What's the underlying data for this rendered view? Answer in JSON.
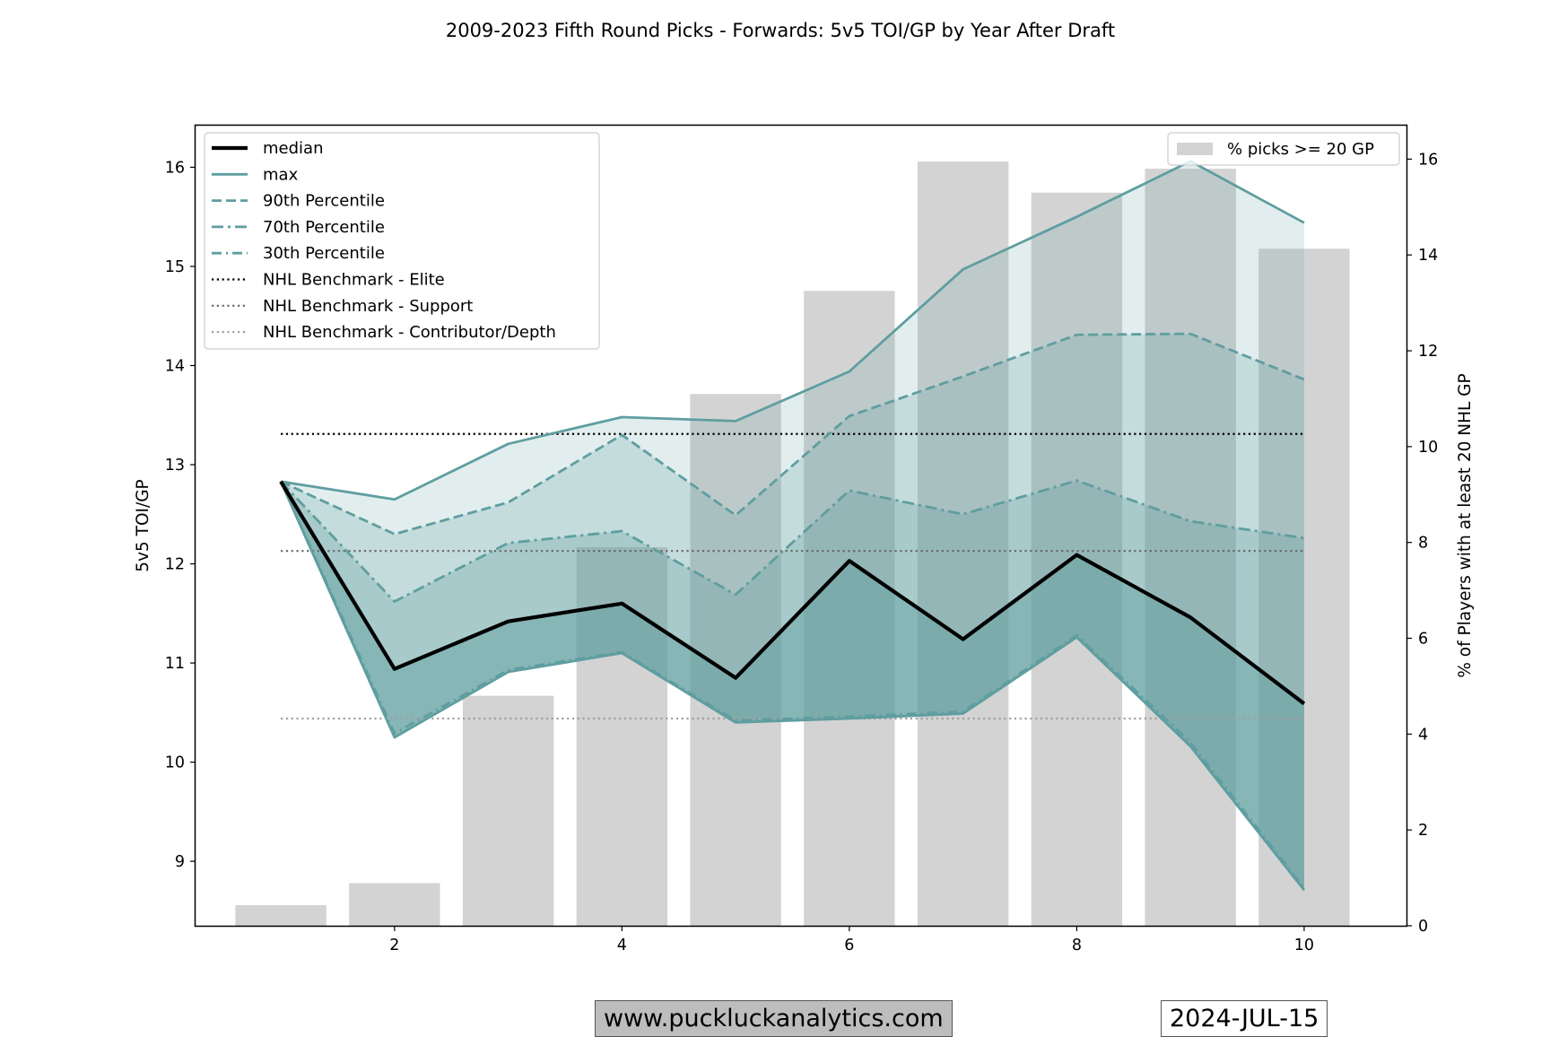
{
  "chart_data": {
    "type": "line",
    "title": "2009-2023 Fifth Round Picks - Forwards: 5v5 TOI/GP by Year After Draft",
    "ylabel": "5v5 TOI/GP",
    "ylabel_right": "% of Players with at least 20 NHL GP",
    "xlim": [
      0.25,
      10.9
    ],
    "ylim": [
      8.35,
      16.42
    ],
    "ylim_right": [
      0,
      16.7
    ],
    "x_ticks": [
      2,
      4,
      6,
      8,
      10
    ],
    "y_ticks": [
      9,
      10,
      11,
      12,
      13,
      14,
      15,
      16
    ],
    "y_ticks_right": [
      0,
      2,
      4,
      6,
      8,
      10,
      12,
      14,
      16
    ],
    "x": [
      1,
      2,
      3,
      4,
      5,
      6,
      7,
      8,
      9,
      10
    ],
    "series": [
      {
        "name": "median",
        "values": [
          12.83,
          10.94,
          11.42,
          11.6,
          10.85,
          12.03,
          11.24,
          12.09,
          11.46,
          10.59
        ],
        "color": "#000000",
        "style": "solid"
      },
      {
        "name": "max",
        "values": [
          12.83,
          12.65,
          13.21,
          13.48,
          13.44,
          13.94,
          14.97,
          15.5,
          16.06,
          15.44
        ],
        "color": "#5f9ea0",
        "style": "solid"
      },
      {
        "name": "90th Percentile",
        "values": [
          12.83,
          12.3,
          12.62,
          13.3,
          12.49,
          13.49,
          13.89,
          14.31,
          14.32,
          13.86
        ],
        "color": "#5f9ea0",
        "style": "dashed"
      },
      {
        "name": "70th Percentile",
        "values": [
          12.83,
          11.62,
          12.21,
          12.33,
          11.69,
          12.74,
          12.5,
          12.84,
          12.43,
          12.26
        ],
        "color": "#5f9ea0",
        "style": "dashdot"
      },
      {
        "name": "30th Percentile",
        "values": [
          12.83,
          10.29,
          10.93,
          11.11,
          10.42,
          10.46,
          10.51,
          11.28,
          10.2,
          8.73
        ],
        "color": "#5f9ea0",
        "style": "dashdot2"
      },
      {
        "name": "",
        "values": [
          12.83,
          10.25,
          10.91,
          11.1,
          10.4,
          10.44,
          10.49,
          11.26,
          10.16,
          8.71
        ],
        "color": "#5f9ea0",
        "style": "solid"
      }
    ],
    "benchmarks": [
      {
        "name": "NHL Benchmark - Elite",
        "value": 13.31,
        "color": "#000000"
      },
      {
        "name": "NHL Benchmark - Support",
        "value": 12.13,
        "color": "#666666"
      },
      {
        "name": "NHL Benchmark - Contributor/Depth",
        "value": 10.44,
        "color": "#a0a0a0"
      }
    ],
    "bars": {
      "name": "% picks >= 20 GP",
      "values": [
        0.43,
        0.89,
        4.8,
        7.9,
        11.1,
        13.25,
        15.95,
        15.3,
        15.8,
        14.13
      ],
      "color": "#d3d3d3"
    },
    "legend_left": "upper-left",
    "legend_right": "upper-right"
  },
  "footer": {
    "site": "www.puckluckanalytics.com",
    "date": "2024-JUL-15"
  }
}
